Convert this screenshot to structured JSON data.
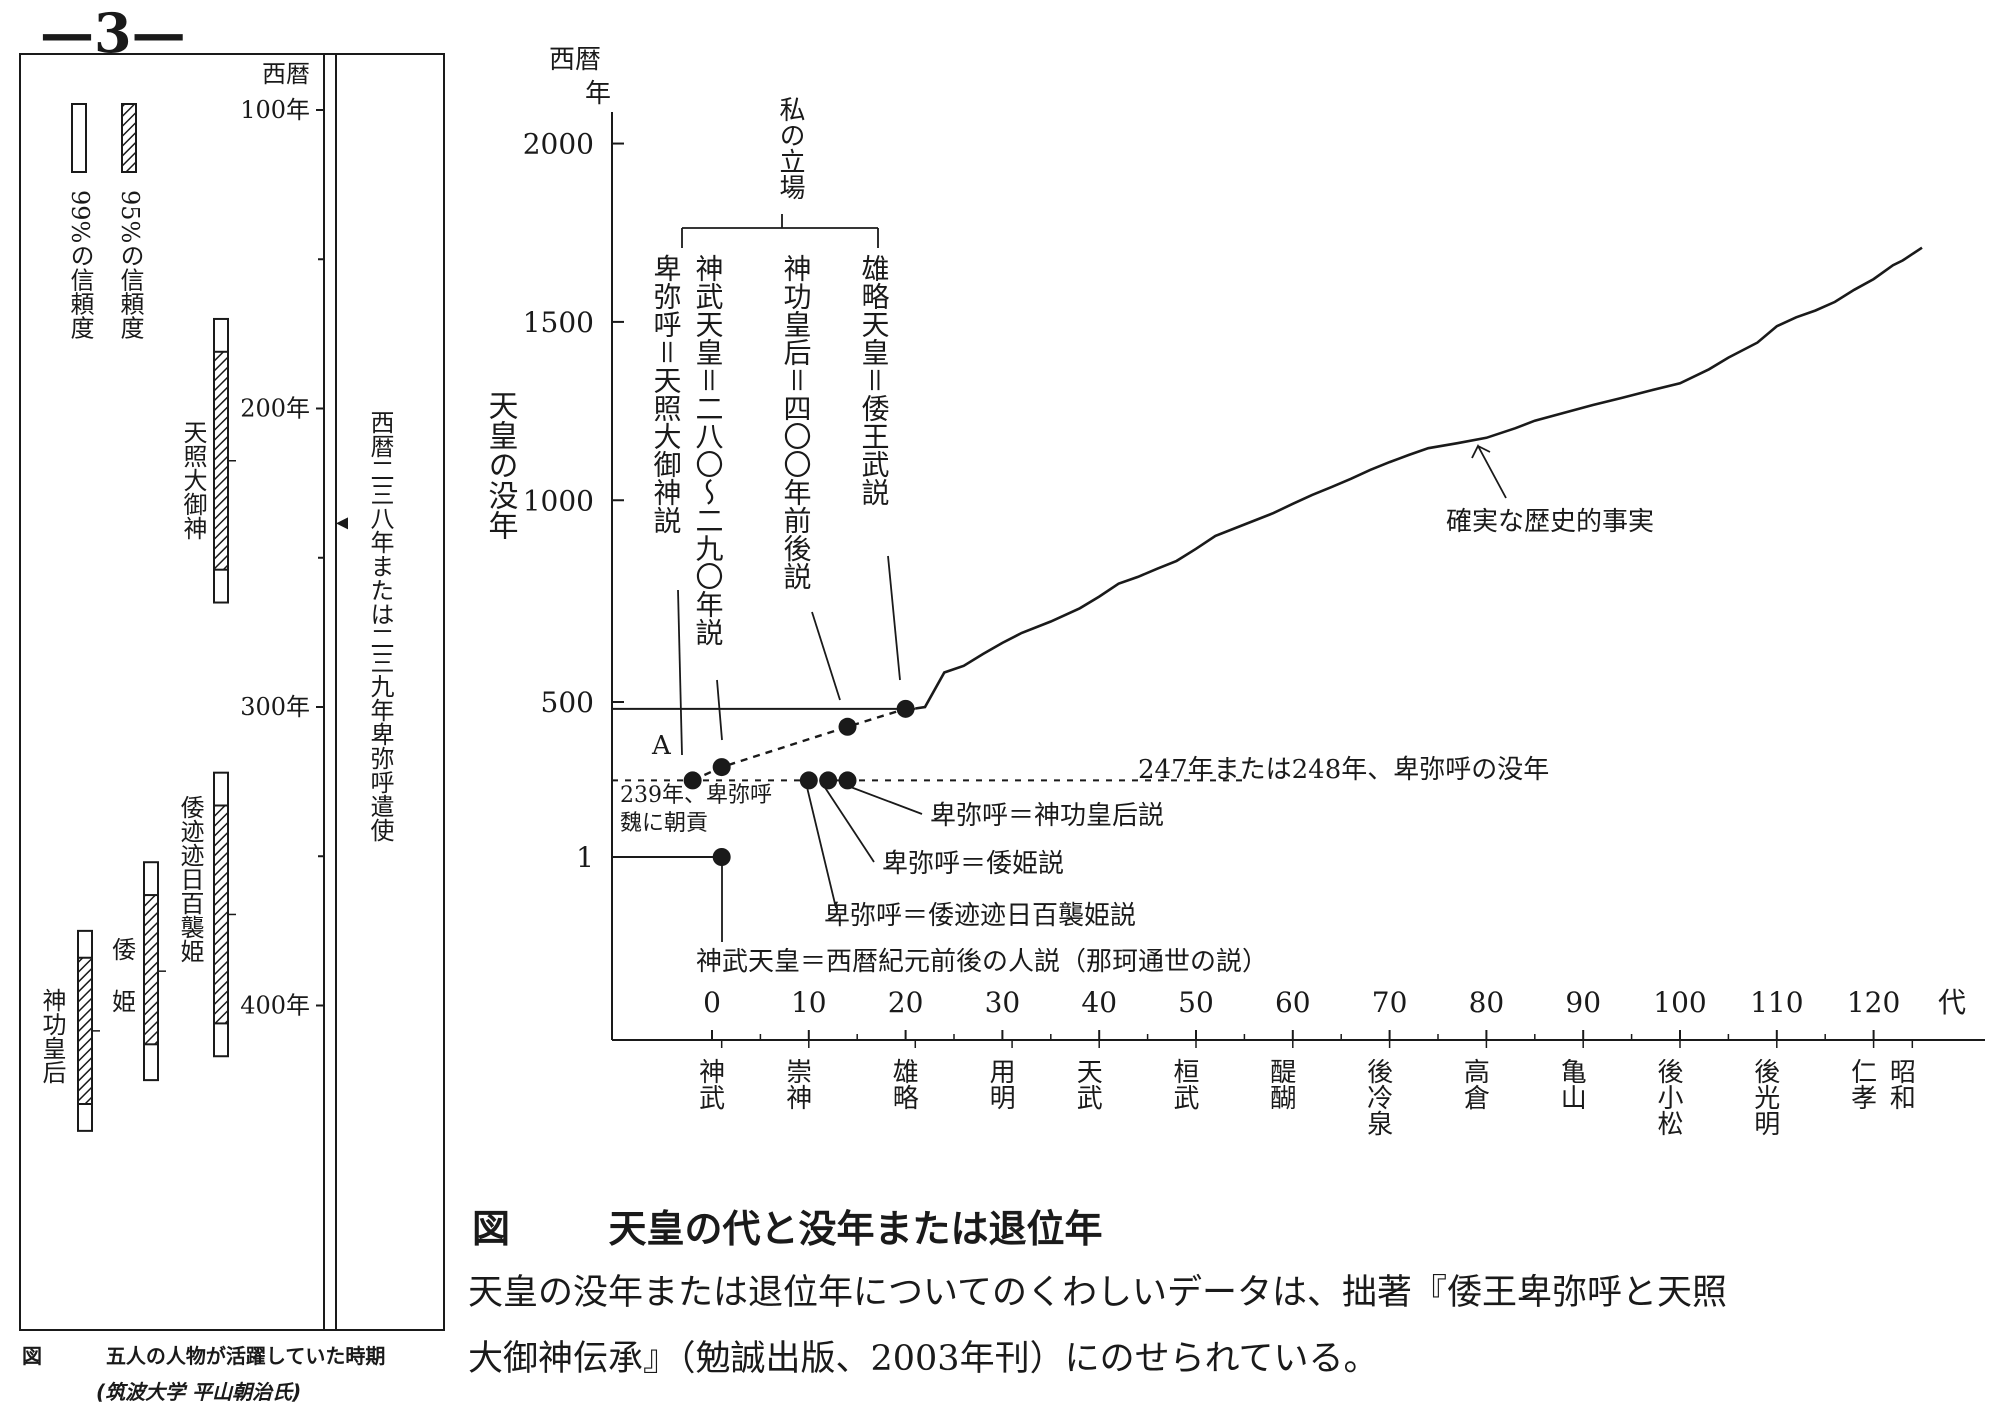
{
  "page_number": "—3—",
  "left_figure": {
    "era_label": "西暦",
    "year_ticks": [
      {
        "value": 100,
        "label": "100年"
      },
      {
        "value": 200,
        "label": "200年"
      },
      {
        "value": 300,
        "label": "300年"
      },
      {
        "value": 400,
        "label": "400年"
      }
    ],
    "legend": [
      {
        "key": "99",
        "text": "99%の信頼度",
        "pattern": "white"
      },
      {
        "key": "95",
        "text": "95%の信頼度",
        "pattern": "hatched"
      }
    ],
    "marker_text": "西暦二三八年または二三九年卑弥呼遣使",
    "marker_year": 238.5,
    "figures": [
      {
        "key": "amaterasu",
        "name": "天照大御神",
        "range_99": [
          170,
          265
        ],
        "range_95": [
          181,
          254
        ]
      },
      {
        "key": "yamatototohi",
        "name": "倭迹迹日百襲姫",
        "range_99": [
          322,
          417
        ],
        "range_95": [
          333,
          406
        ]
      },
      {
        "key": "yamatohime",
        "name": "倭姫",
        "names": [
          "倭",
          "姫"
        ],
        "range_99": [
          352,
          425
        ],
        "range_95": [
          363,
          413
        ]
      },
      {
        "key": "jingu",
        "name": "神功皇后",
        "range_99": [
          375,
          442
        ],
        "range_95": [
          384,
          433
        ]
      }
    ],
    "caption_label": "図",
    "caption_text": "五人の人物が活躍していた時期",
    "handwritten_note": "(筑波大学 平山朝治氏)"
  },
  "chart_data": {
    "type": "line",
    "title": "天皇の代と没年または退位年",
    "caption_label": "図",
    "xlabel": "代",
    "ylabel": "天皇の没年",
    "y_unit_label": [
      "西暦",
      "年"
    ],
    "xlim": [
      -10,
      130
    ],
    "ylim": [
      -500,
      2000
    ],
    "x_ticks": [
      0,
      10,
      20,
      30,
      40,
      50,
      60,
      70,
      80,
      90,
      100,
      110,
      120
    ],
    "y_ticks": [
      {
        "value": 1,
        "label": "1",
        "pos": 1
      },
      {
        "value": 500,
        "label": "500",
        "pos": 500
      },
      {
        "value": 1000,
        "label": "1000",
        "pos": 1000
      },
      {
        "value": 1500,
        "label": "1500",
        "pos": 1500
      },
      {
        "value": 2000,
        "label": "2000",
        "pos": 2000
      }
    ],
    "y_scale_note": "y axis is not linear below 500: the printed tick 1 sits at the level of 0.",
    "emperor_labels": [
      {
        "reign": 1,
        "name": "神武"
      },
      {
        "reign": 10,
        "name": "崇神"
      },
      {
        "reign": 21,
        "name": "雄略"
      },
      {
        "reign": 31,
        "name": "用明"
      },
      {
        "reign": 40,
        "name": "天武"
      },
      {
        "reign": 50,
        "name": "桓武"
      },
      {
        "reign": 60,
        "name": "醍醐"
      },
      {
        "reign": 70,
        "name": "後冷泉"
      },
      {
        "reign": 80,
        "name": "高倉"
      },
      {
        "reign": 90,
        "name": "亀山"
      },
      {
        "reign": 100,
        "name": "後小松"
      },
      {
        "reign": 110,
        "name": "後光明"
      },
      {
        "reign": 120,
        "name": "仁孝"
      },
      {
        "reign": 124,
        "name": "昭和"
      }
    ],
    "series": [
      {
        "name": "確実な歴史的事実",
        "style": "solid",
        "points": [
          [
            21,
            479
          ],
          [
            22,
            484
          ],
          [
            24,
            517
          ],
          [
            26,
            536
          ],
          [
            28,
            569
          ],
          [
            30,
            600
          ],
          [
            32,
            628
          ],
          [
            35,
            660
          ],
          [
            38,
            697
          ],
          [
            40,
            730
          ],
          [
            42,
            766
          ],
          [
            44,
            785
          ],
          [
            46,
            808
          ],
          [
            48,
            830
          ],
          [
            50,
            864
          ],
          [
            52,
            900
          ],
          [
            55,
            932
          ],
          [
            58,
            964
          ],
          [
            60,
            990
          ],
          [
            62,
            1015
          ],
          [
            64,
            1037
          ],
          [
            66,
            1060
          ],
          [
            68,
            1085
          ],
          [
            70,
            1107
          ],
          [
            72,
            1127
          ],
          [
            74,
            1146
          ],
          [
            77,
            1160
          ],
          [
            80,
            1175
          ],
          [
            83,
            1202
          ],
          [
            85,
            1223
          ],
          [
            88,
            1245
          ],
          [
            91,
            1267
          ],
          [
            94,
            1287
          ],
          [
            97,
            1308
          ],
          [
            100,
            1328
          ],
          [
            103,
            1367
          ],
          [
            105,
            1400
          ],
          [
            108,
            1442
          ],
          [
            110,
            1488
          ],
          [
            112,
            1513
          ],
          [
            114,
            1532
          ],
          [
            116,
            1556
          ],
          [
            118,
            1590
          ],
          [
            120,
            1620
          ],
          [
            122,
            1659
          ],
          [
            123,
            1672
          ],
          [
            124,
            1690
          ],
          [
            125,
            1708
          ]
        ]
      },
      {
        "name": "私の立場",
        "style": "dashed",
        "points": [
          [
            -2,
            247
          ],
          [
            1,
            290
          ],
          [
            14,
            420
          ],
          [
            20,
            478
          ]
        ]
      }
    ],
    "highlight_points": [
      {
        "x": -2,
        "y": 247,
        "label": "A"
      },
      {
        "x": 1,
        "y": 290
      },
      {
        "x": 14,
        "y": 420
      },
      {
        "x": 20,
        "y": 478
      },
      {
        "x": 10,
        "y": 247
      },
      {
        "x": 12,
        "y": 247
      },
      {
        "x": 14,
        "y": 247
      },
      {
        "x": 1,
        "y": 1
      }
    ],
    "reference_lines": [
      {
        "y": 478,
        "x_from": -6,
        "x_to": 21,
        "style": "solid"
      },
      {
        "y": 247,
        "x_from": -6,
        "x_to": 55,
        "style": "dashed",
        "label": "247年または248年、卑弥呼の没年"
      },
      {
        "y": 1,
        "x_from": -6,
        "x_to": 1,
        "style": "solid"
      }
    ],
    "annotations": {
      "my_position": "私の立場",
      "col_jingu_label": "神功皇后＝四〇〇年前後説",
      "col_yuryaku": "雄略天皇＝倭王武説",
      "col_jingu": "神功皇后＝四〇〇年前後説",
      "col_jimmu": "神武天皇＝二八〇〜二九〇年説",
      "col_himiko": "卑弥呼＝天照大御神説",
      "point_a": "A",
      "year239_line1": "239年、卑弥呼",
      "year239_line2": "魏に朝貢",
      "himiko_death": "247年または248年、卑弥呼の没年",
      "theory_jingu": "卑弥呼＝神功皇后説",
      "theory_yamatohime": "卑弥呼＝倭姫説",
      "theory_momoso": "卑弥呼＝倭迹迹日百襲姫説",
      "theory_jimmu_bc": "神武天皇＝西暦紀元前後の人説（那珂通世の説）",
      "certain_fact": "確実な歴史的事実"
    },
    "caption_body_line1": "天皇の没年または退位年についてのくわしいデータは、拙著『倭王卑弥呼と天照",
    "caption_body_line2": "大御神伝承』（勉誠出版、2003年刊）にのせられている。"
  }
}
